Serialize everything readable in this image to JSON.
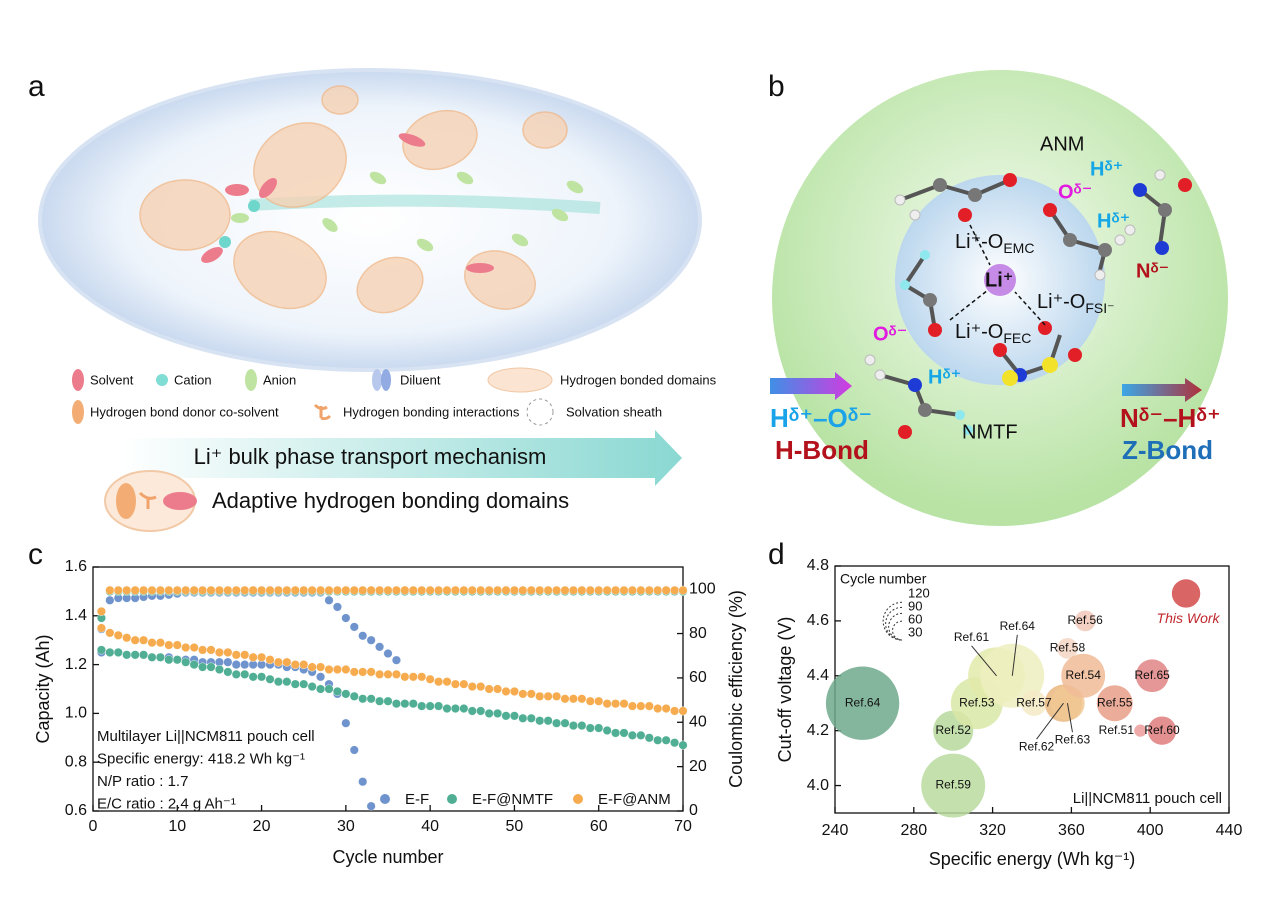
{
  "panel_labels": [
    "a",
    "b",
    "c",
    "d"
  ],
  "panel_a": {
    "legend": [
      "Solvent",
      "Cation",
      "Anion",
      "Diluent",
      "Hydrogen bonded domains",
      "Hydrogen bond donor co-solvent",
      "Hydrogen bonding interactions",
      "Solvation sheath"
    ],
    "arrow_text": "Li⁺ bulk phase transport mechanism",
    "caption": "Adaptive hydrogen bonding domains"
  },
  "panel_b": {
    "labels": [
      {
        "text": "ANM"
      },
      {
        "text": "Hᵟ⁺"
      },
      {
        "text": "Oᵟ⁻"
      },
      {
        "text": "Hᵟ⁺"
      },
      {
        "text": "Nᵟ⁻"
      },
      {
        "text": "Li⁺-O",
        "sub": "EMC"
      },
      {
        "text": "Li⁺"
      },
      {
        "text": "Li⁺-O",
        "sub": "FSI⁻"
      },
      {
        "text": "Li⁺-O",
        "sub": "FEC"
      },
      {
        "text": "Oᵟ⁻"
      },
      {
        "text": "Hᵟ⁺"
      },
      {
        "text": "NMTF"
      }
    ],
    "h_bond": {
      "formula": "Hᵟ⁺–Oᵟ⁻",
      "name": "H-Bond"
    },
    "z_bond": {
      "formula": "Nᵟ⁻–Hᵟ⁺",
      "name": "Z-Bond"
    }
  },
  "chart_data": [
    {
      "type": "scatter",
      "x_label": "Cycle number",
      "y_label": "Capacity (Ah)",
      "y2_label": "Coulombic efficiency (%)",
      "annotations": [
        "Multilayer Li||NCM811 pouch cell",
        "Specific energy: 418.2 Wh kg⁻¹",
        "N/P ratio : 1.7",
        "E/C ratio : 2.4 g Ah⁻¹"
      ],
      "xlim": [
        0,
        70
      ],
      "xticks": [
        0,
        10,
        20,
        30,
        40,
        50,
        60,
        70
      ],
      "ylim": [
        0.6,
        1.6
      ],
      "yticks": [
        0.6,
        0.8,
        {
          "value": 1,
          "label": "1.0"
        },
        1.2,
        1.4,
        1.6
      ],
      "y2lim": [
        0,
        110
      ],
      "y2ticks": [
        0,
        20,
        40,
        60,
        80,
        100
      ],
      "x": [
        1,
        2,
        3,
        4,
        5,
        6,
        7,
        8,
        9,
        10,
        11,
        12,
        13,
        14,
        15,
        16,
        17,
        18,
        19,
        20,
        21,
        22,
        23,
        24,
        25,
        26,
        27,
        28,
        29,
        30,
        31,
        32,
        33,
        34,
        35,
        36,
        37,
        38,
        39,
        40,
        41,
        42,
        43,
        44,
        45,
        46,
        47,
        48,
        49,
        50,
        51,
        52,
        53,
        54,
        55,
        56,
        57,
        58,
        59,
        60,
        61,
        62,
        63,
        64,
        65,
        66,
        67,
        68,
        69,
        70
      ],
      "series": [
        {
          "name": "E-F",
          "color": "#6f93cc",
          "values": [
            1.25,
            1.25,
            1.25,
            1.24,
            1.24,
            1.24,
            1.23,
            1.23,
            1.23,
            1.22,
            1.22,
            1.22,
            1.21,
            1.21,
            1.21,
            1.21,
            1.2,
            1.2,
            1.2,
            1.2,
            1.2,
            1.2,
            1.19,
            1.19,
            1.18,
            1.17,
            1.15,
            1.12,
            1.08,
            0.96,
            0.85,
            0.72,
            0.62,
            null,
            null,
            null,
            null,
            null,
            null,
            null,
            null,
            null,
            null,
            null,
            null,
            null,
            null,
            null,
            null,
            null,
            null,
            null,
            null,
            null,
            null,
            null,
            null,
            null,
            null,
            null,
            null,
            null,
            null,
            null,
            null,
            null,
            null,
            null,
            null,
            null
          ],
          "efficiency": [
            82,
            95,
            96,
            96,
            96,
            96.5,
            97,
            97,
            97.5,
            98,
            98.5,
            98.5,
            98.5,
            98.5,
            98.5,
            98.5,
            98.5,
            98.5,
            98.5,
            98.5,
            98.5,
            98.5,
            98.5,
            98.5,
            98.5,
            98.5,
            98.5,
            95,
            92,
            87,
            83,
            79,
            77,
            74,
            71,
            68,
            null,
            null,
            null,
            null,
            null,
            null,
            null,
            null,
            null,
            null,
            null,
            null,
            null,
            null,
            null,
            null,
            null,
            null,
            null,
            null,
            null,
            null,
            null,
            null,
            null,
            null,
            null,
            null,
            null,
            null,
            null,
            null,
            null,
            null
          ]
        },
        {
          "name": "E-F@NMTF",
          "color": "#4fae93",
          "values": [
            1.26,
            1.25,
            1.25,
            1.24,
            1.24,
            1.24,
            1.23,
            1.23,
            1.22,
            1.22,
            1.21,
            1.2,
            1.19,
            1.19,
            1.18,
            1.17,
            1.16,
            1.16,
            1.15,
            1.15,
            1.14,
            1.13,
            1.13,
            1.12,
            1.12,
            1.11,
            1.1,
            1.1,
            1.09,
            1.08,
            1.07,
            1.06,
            1.06,
            1.05,
            1.05,
            1.04,
            1.04,
            1.04,
            1.03,
            1.03,
            1.03,
            1.02,
            1.02,
            1.02,
            1.01,
            1.01,
            1.0,
            1.0,
            0.99,
            0.99,
            0.98,
            0.98,
            0.97,
            0.97,
            0.96,
            0.96,
            0.95,
            0.95,
            0.94,
            0.94,
            0.93,
            0.92,
            0.92,
            0.91,
            0.91,
            0.9,
            0.89,
            0.89,
            0.88,
            0.87
          ],
          "efficiency": [
            87,
            99,
            99,
            99,
            99,
            99,
            99,
            99,
            99,
            99,
            99,
            99,
            99,
            99,
            99,
            99,
            99,
            99,
            99,
            99,
            99,
            99,
            99,
            99,
            99,
            99,
            99,
            99,
            99,
            99,
            99,
            99,
            99,
            99,
            99,
            99,
            99,
            99,
            99,
            99,
            99,
            99,
            99,
            99,
            99,
            99,
            99,
            99,
            99,
            99,
            99,
            99,
            99,
            99,
            99,
            99,
            99,
            99,
            99,
            99,
            99,
            99,
            99,
            99,
            99,
            99,
            99,
            99,
            99,
            99
          ]
        },
        {
          "name": "E-F@ANM",
          "color": "#f6ab4f",
          "values": [
            1.35,
            1.33,
            1.32,
            1.31,
            1.3,
            1.3,
            1.29,
            1.29,
            1.28,
            1.28,
            1.27,
            1.27,
            1.26,
            1.26,
            1.25,
            1.25,
            1.24,
            1.24,
            1.23,
            1.23,
            1.22,
            1.21,
            1.21,
            1.2,
            1.2,
            1.19,
            1.19,
            1.18,
            1.18,
            1.18,
            1.17,
            1.17,
            1.17,
            1.16,
            1.16,
            1.16,
            1.15,
            1.15,
            1.15,
            1.14,
            1.13,
            1.13,
            1.12,
            1.12,
            1.11,
            1.11,
            1.1,
            1.1,
            1.09,
            1.09,
            1.08,
            1.08,
            1.07,
            1.07,
            1.07,
            1.06,
            1.06,
            1.06,
            1.05,
            1.05,
            1.04,
            1.04,
            1.04,
            1.03,
            1.03,
            1.03,
            1.02,
            1.02,
            1.01,
            1.01
          ],
          "efficiency": [
            90,
            99.5,
            99.5,
            99.5,
            99.5,
            99.5,
            99.5,
            99.5,
            99.5,
            99.5,
            99.5,
            99.5,
            99.5,
            99.5,
            99.5,
            99.5,
            99.5,
            99.5,
            99.5,
            99.5,
            99.5,
            99.5,
            99.5,
            99.5,
            99.5,
            99.5,
            99.5,
            99.5,
            99.5,
            99.5,
            99.5,
            99.5,
            99.5,
            99.5,
            99.5,
            99.5,
            99.5,
            99.5,
            99.5,
            99.5,
            99.5,
            99.5,
            99.5,
            99.5,
            99.5,
            99.5,
            99.5,
            99.5,
            99.5,
            99.5,
            99.5,
            99.5,
            99.5,
            99.5,
            99.5,
            99.5,
            99.5,
            99.5,
            99.5,
            99.5,
            99.5,
            99.5,
            99.5,
            99.5,
            99.5,
            99.5,
            99.5,
            99.5,
            99.5,
            99.5
          ]
        }
      ]
    },
    {
      "type": "bubble",
      "x_label": "Specific energy (Wh kg⁻¹)",
      "y_label": "Cut-off voltage (V)",
      "annotation": "Li||NCM811 pouch cell",
      "xlim": [
        240,
        440
      ],
      "xticks": [
        240,
        280,
        320,
        360,
        400,
        440
      ],
      "ylim": [
        3.9,
        4.8
      ],
      "yticks": [
        {
          "value": 4,
          "label": "4.0"
        },
        4.2,
        4.4,
        4.6,
        4.8
      ],
      "labels": [
        "Ref.64",
        "Ref.52",
        "Ref.59",
        "Ref.53",
        "Ref.61",
        "Ref.64",
        "Ref.57",
        "Ref.62",
        "Ref.63",
        "Ref.58",
        "Ref.56",
        "Ref.54",
        "Ref.55",
        "Ref.65",
        "Ref.51",
        "Ref.60",
        "This Work"
      ],
      "x": [
        254,
        300,
        300,
        312,
        322,
        330,
        341,
        356,
        358,
        358,
        367,
        366,
        382,
        401,
        395,
        406,
        418.2
      ],
      "y": [
        4.3,
        4.2,
        4.0,
        4.3,
        4.4,
        4.4,
        4.3,
        4.3,
        4.3,
        4.5,
        4.6,
        4.4,
        4.3,
        4.4,
        4.2,
        4.2,
        4.7
      ],
      "sizes": [
        500,
        150,
        380,
        250,
        300,
        380,
        60,
        130,
        110,
        40,
        40,
        180,
        120,
        100,
        14,
        75,
        75
      ],
      "colors": [
        "#6fa88c",
        "#b7d99c",
        "#b9db9f",
        "#d8e8a6",
        "#e3eaa9",
        "#eeefc0",
        "#f4e9c6",
        "#e9b77f",
        "#f1c792",
        "#f4d6c3",
        "#f1c8b8",
        "#f0bb97",
        "#e99d88",
        "#e18484",
        "#ec9b9b",
        "#e07d7d",
        "#d34a4a"
      ],
      "size_legend": {
        "title": "Cycle number",
        "values": [
          120,
          90,
          60,
          30
        ]
      }
    }
  ]
}
